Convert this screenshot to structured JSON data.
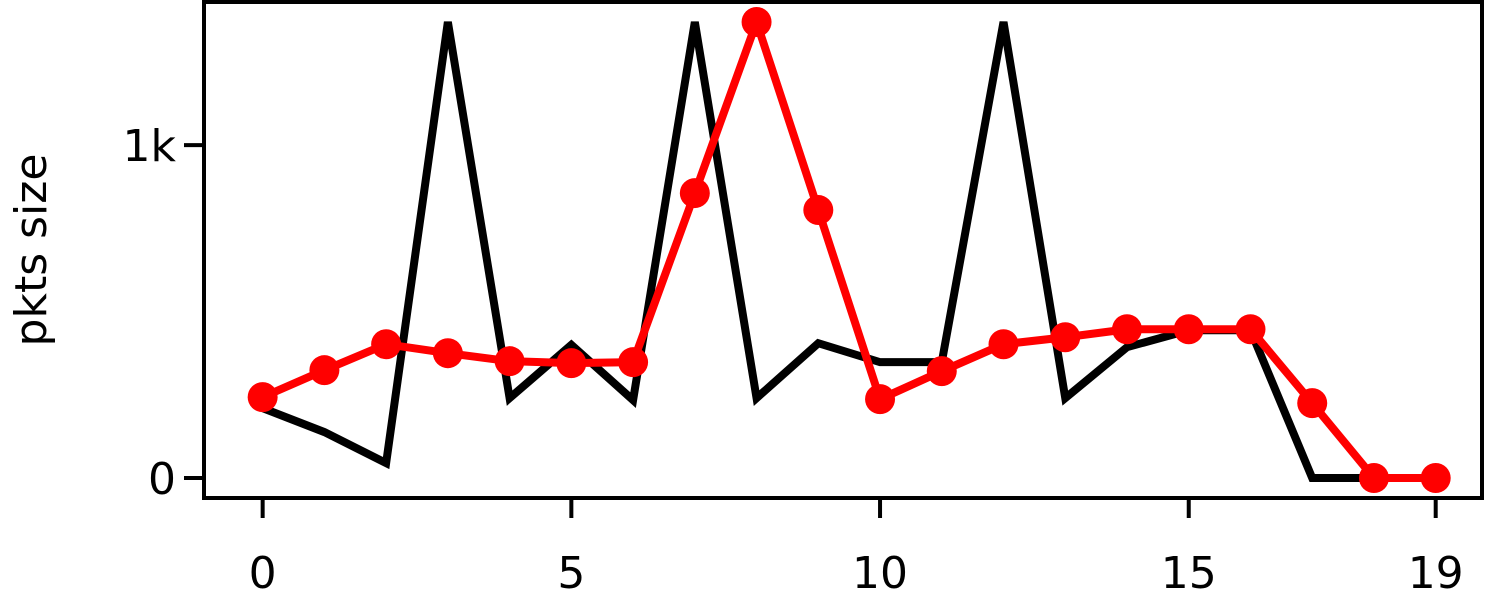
{
  "chart_data": {
    "type": "line",
    "y_label": "pkts size",
    "x": [
      0,
      1,
      2,
      3,
      4,
      5,
      6,
      7,
      8,
      9,
      10,
      11,
      12,
      13,
      14,
      15,
      16,
      17,
      18,
      19
    ],
    "series": [
      {
        "color": "#000000",
        "marker": false,
        "values": [
          210,
          138,
          45,
          1370,
          240,
          400,
          234,
          1370,
          240,
          405,
          348,
          348,
          1370,
          240,
          393,
          444,
          444,
          0,
          0,
          0
        ]
      },
      {
        "color": "#ff0000",
        "marker": true,
        "values": [
          243,
          324,
          402,
          375,
          351,
          345,
          348,
          856,
          1370,
          805,
          237,
          321,
          402,
          423,
          447,
          447,
          447,
          225,
          0,
          0
        ]
      }
    ],
    "xlim": [
      -0.95,
      19.75
    ],
    "ylim": [
      -60,
      1430
    ],
    "xticks": [
      0,
      5,
      10,
      15,
      19
    ],
    "yticks": [
      0,
      {
        "value": 1000,
        "label": "1k"
      }
    ],
    "grid": false
  }
}
